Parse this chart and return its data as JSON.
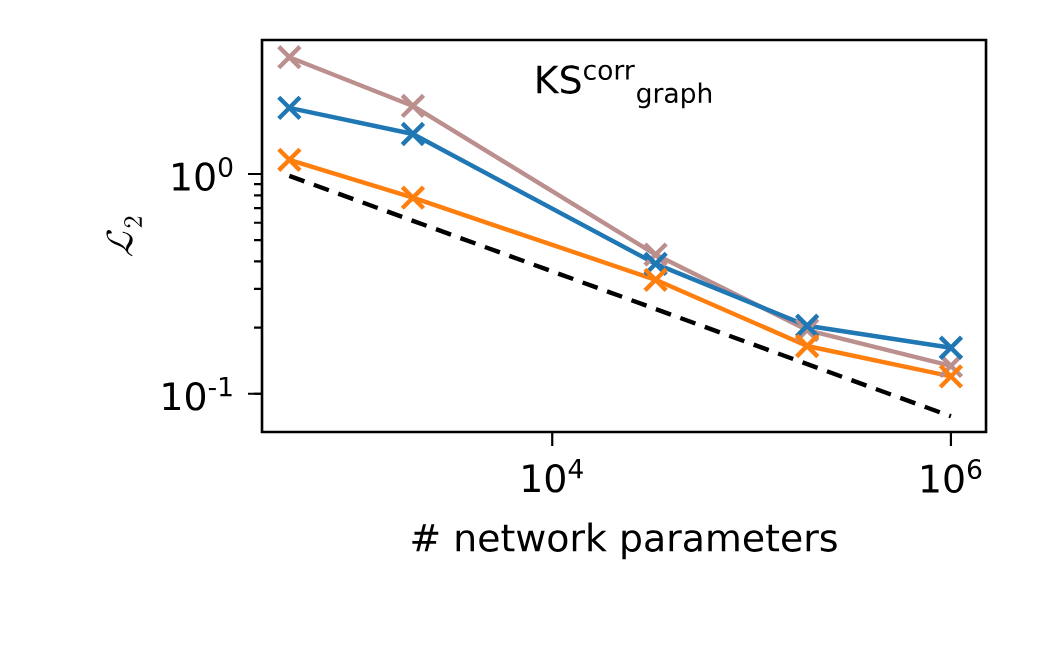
{
  "chart_data": {
    "type": "line",
    "title": "KS$^{corr}$$_{graph}$",
    "xlabel": "# network parameters",
    "ylabel": "\\mathcal{L}_2",
    "log": "xy",
    "marker": "cross",
    "line_style": "solid",
    "grid": false,
    "xlim": [
      350,
      1500000
    ],
    "ylim": [
      0.067,
      4.07
    ],
    "xticks": [
      {
        "value": 10000,
        "label": "10$^{4}$"
      },
      {
        "value": 1000000,
        "label": "10$^{6}$"
      }
    ],
    "yticks": [
      {
        "value": 0.1,
        "label": "10$^{-1}$"
      },
      {
        "value": 1,
        "label": "10$^{0}$"
      }
    ],
    "x": [
      480,
      2000,
      33000,
      190000,
      1000000
    ],
    "series": [
      {
        "color": "#bc8f8f",
        "values": [
          3.4,
          2.04,
          0.43,
          0.195,
          0.134
        ]
      },
      {
        "color": "#1f77b4",
        "values": [
          2.0,
          1.52,
          0.39,
          0.204,
          0.162
        ]
      },
      {
        "color": "#ff7f0e",
        "values": [
          1.16,
          0.78,
          0.33,
          0.165,
          0.12
        ]
      },
      {
        "type": "line",
        "color": "#000000",
        "marker": "none",
        "line_style": "dashed",
        "x": [
          480,
          1000000
        ],
        "values": [
          0.98,
          0.079
        ]
      }
    ]
  }
}
